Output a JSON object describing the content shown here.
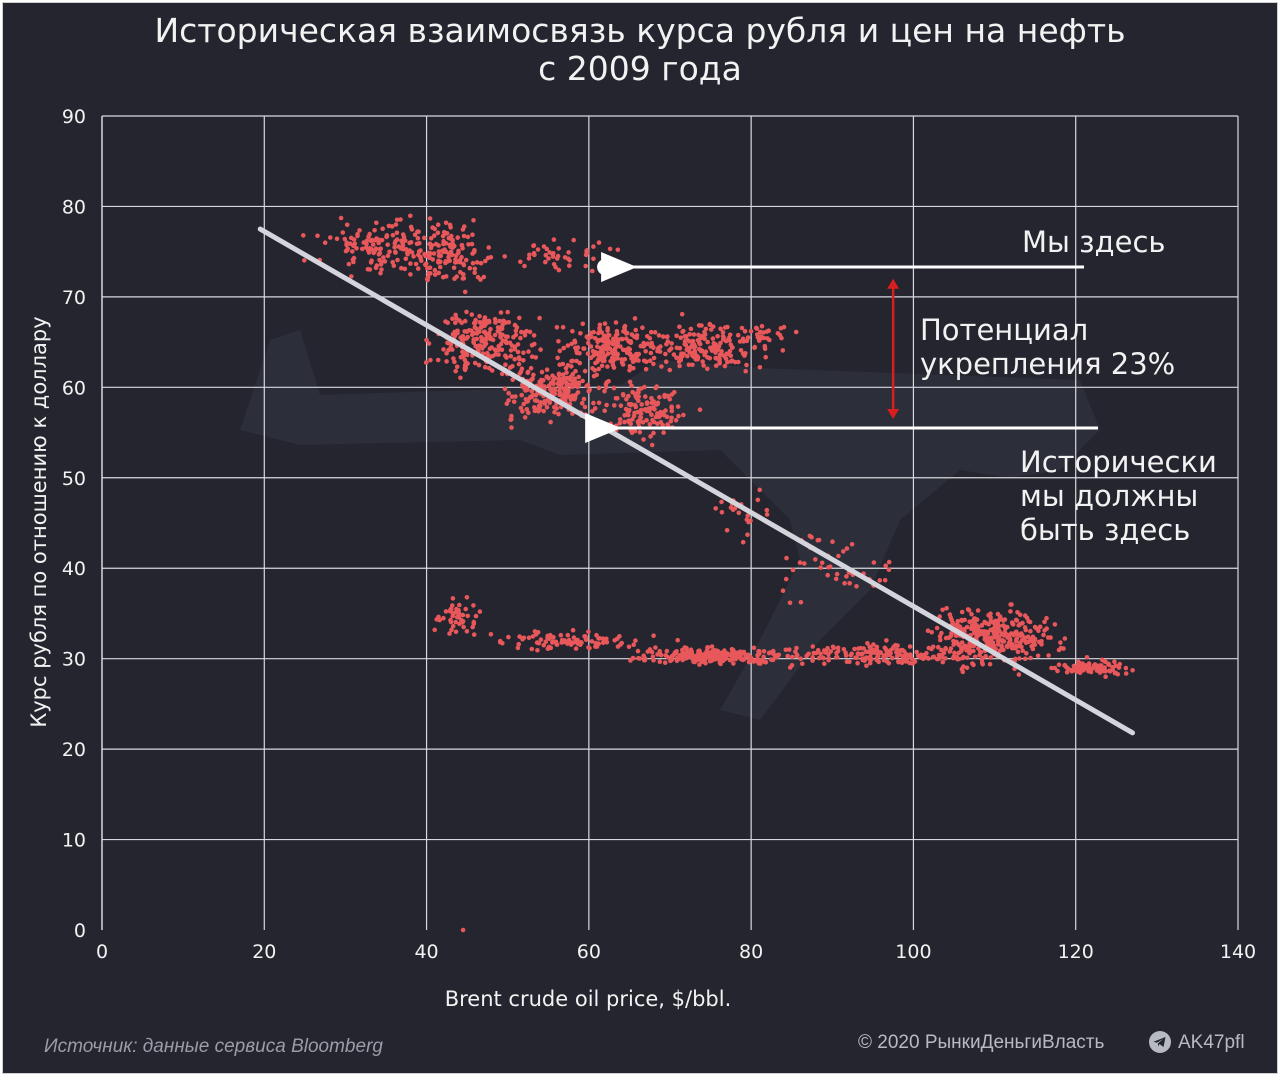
{
  "title_line1": "Историческая взаимосвязь курса рубля и цен на нефть",
  "title_line2": "с 2009 года",
  "source": "Источник: данные сервиса Bloomberg",
  "copyright": "© 2020  РынкиДеньгиВласть",
  "handle": "AK47pfl",
  "annotations": {
    "we_are_here": "Мы здесь",
    "potential_line1": "Потенциал",
    "potential_line2": "укрепления 23%",
    "should_line1": "Исторически",
    "should_line2": "мы должны",
    "should_line3": "быть здесь"
  },
  "colors": {
    "background": "#24252f",
    "points": "#e8585b",
    "trend": "#d4d5dc",
    "arrow_red": "#d81e1e",
    "text": "#f2f2f2"
  },
  "chart_data": {
    "type": "scatter",
    "title": "Историческая взаимосвязь курса рубля и цен на нефть с 2009 года",
    "xlabel": "Brent crude oil price, $/bbl.",
    "ylabel": "Курс рубля по отношению к доллару",
    "xlim": [
      0,
      140
    ],
    "ylim": [
      0,
      90
    ],
    "xticks": [
      "0",
      "20",
      "40",
      "60",
      "80",
      "100",
      "120",
      "140"
    ],
    "yticks": [
      "0",
      "10",
      "20",
      "30",
      "40",
      "50",
      "60",
      "70",
      "80",
      "90"
    ],
    "grid": true,
    "trendline": {
      "x": [
        19.5,
        127
      ],
      "y": [
        77.5,
        21.8
      ]
    },
    "current_point": {
      "x": 62,
      "y": 73.3
    },
    "historical_point": {
      "x": 62.5,
      "y": 55.5
    },
    "potential_arrow": {
      "x": 97.5,
      "y_from": 72,
      "y_to": 56.5
    },
    "clusters": [
      {
        "cx": 35,
        "cy": 75.5,
        "sx": 5.5,
        "sy": 2.0,
        "n": 150
      },
      {
        "cx": 43.5,
        "cy": 74.5,
        "sx": 3.0,
        "sy": 2.3,
        "n": 110
      },
      {
        "cx": 56,
        "cy": 74.5,
        "sx": 5.0,
        "sy": 1.2,
        "n": 45
      },
      {
        "cx": 47,
        "cy": 65,
        "sx": 4.0,
        "sy": 2.4,
        "n": 220
      },
      {
        "cx": 56,
        "cy": 59.5,
        "sx": 4.5,
        "sy": 2.2,
        "n": 230
      },
      {
        "cx": 63,
        "cy": 64.5,
        "sx": 4.0,
        "sy": 1.8,
        "n": 200
      },
      {
        "cx": 74,
        "cy": 64.5,
        "sx": 5.0,
        "sy": 1.8,
        "n": 170
      },
      {
        "cx": 67,
        "cy": 57.5,
        "sx": 3.5,
        "sy": 2.2,
        "n": 130
      },
      {
        "cx": 82,
        "cy": 66,
        "sx": 2.5,
        "sy": 0.7,
        "n": 25
      },
      {
        "cx": 43.5,
        "cy": 34.5,
        "sx": 2.0,
        "sy": 1.5,
        "n": 45
      },
      {
        "cx": 58,
        "cy": 32,
        "sx": 7.0,
        "sy": 0.7,
        "n": 90
      },
      {
        "cx": 75,
        "cy": 30.3,
        "sx": 6.0,
        "sy": 0.6,
        "n": 230
      },
      {
        "cx": 96,
        "cy": 30.5,
        "sx": 8.0,
        "sy": 0.8,
        "n": 180
      },
      {
        "cx": 110,
        "cy": 32.5,
        "sx": 5.0,
        "sy": 2.2,
        "n": 330
      },
      {
        "cx": 122,
        "cy": 29,
        "sx": 3.0,
        "sy": 0.6,
        "n": 90
      },
      {
        "cx": 90,
        "cy": 40,
        "sx": 6.0,
        "sy": 2.5,
        "n": 45
      },
      {
        "cx": 79,
        "cy": 46,
        "sx": 2.5,
        "sy": 1.5,
        "n": 20
      }
    ],
    "outlier": {
      "x": 44.5,
      "y": 0
    }
  }
}
